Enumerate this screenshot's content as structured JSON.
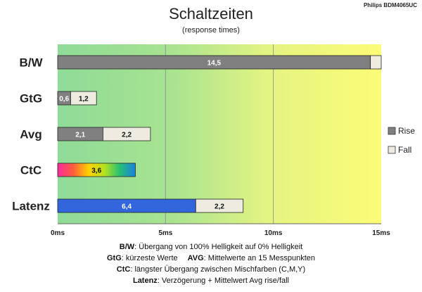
{
  "brand": "Philips BDM4065UC",
  "chart_data": {
    "type": "bar",
    "orientation": "horizontal",
    "stacked": true,
    "title": "Schaltzeiten",
    "subtitle": "(response times)",
    "categories": [
      "B/W",
      "GtG",
      "Avg",
      "CtC",
      "Latenz"
    ],
    "series": [
      {
        "name": "Rise",
        "values": [
          14.5,
          0.6,
          2.1,
          3.6,
          6.4
        ],
        "labels": [
          "14,5",
          "0,6",
          "2,1",
          "3,6",
          "6,4"
        ]
      },
      {
        "name": "Fall",
        "values": [
          0.5,
          1.2,
          2.2,
          null,
          2.2
        ],
        "labels": [
          "",
          "1,2",
          "2,2",
          "",
          "2,2"
        ]
      }
    ],
    "xlim": [
      0,
      15
    ],
    "xticks": [
      0,
      5,
      10,
      15
    ],
    "xtick_labels": [
      "0ms",
      "5ms",
      "10ms",
      "15ms"
    ],
    "grid": true,
    "legend_position": "right",
    "colors": {
      "rise": "#808080",
      "fall": "#eeebe0",
      "latenz_rise": "#3366dd",
      "background_from": "#90dc98",
      "background_to": "#fcfc78"
    }
  },
  "notes": [
    {
      "key": "B/W",
      "text": ":  Übergang von 100% Helligkeit auf 0% Helligkeit"
    },
    {
      "key": "GtG",
      "text": ": kürzeste  Werte",
      "key2": "AVG",
      "text2": ": Mittelwerte  an 15 Messpunkten"
    },
    {
      "key": "CtC",
      "text": ": längster Übergang  zwischen Mischfarben  (C,M,Y)"
    },
    {
      "key": "Latenz",
      "text": ": Verzögerung  + Mittelwert Avg rise/fall"
    }
  ]
}
